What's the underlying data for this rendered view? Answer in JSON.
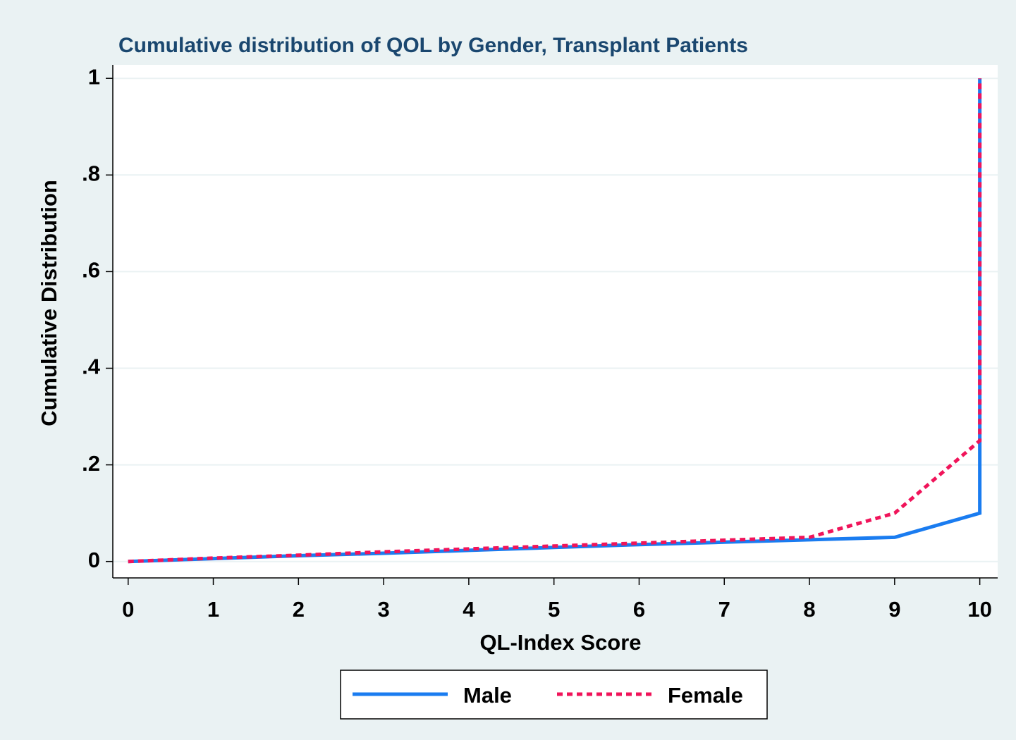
{
  "chart_data": {
    "type": "line",
    "title": "Cumulative distribution of QOL by Gender, Transplant Patients",
    "x_label": "QL-Index Score",
    "y_label": "Cumulative Distribution",
    "series": [
      {
        "name": "Male",
        "color": "#1a7cf0",
        "dash": "solid",
        "x": [
          0,
          1,
          2,
          3,
          4,
          5,
          6,
          7,
          8,
          9,
          10,
          10
        ],
        "values": [
          0,
          0.006,
          0.012,
          0.017,
          0.023,
          0.029,
          0.035,
          0.04,
          0.045,
          0.05,
          0.1,
          1
        ]
      },
      {
        "name": "Female",
        "color": "#f0145a",
        "dash": "dotted",
        "x": [
          0,
          1,
          2,
          3,
          4,
          5,
          6,
          7,
          8,
          9,
          10,
          10
        ],
        "values": [
          0,
          0.007,
          0.013,
          0.02,
          0.026,
          0.032,
          0.038,
          0.044,
          0.05,
          0.1,
          0.25,
          1
        ]
      }
    ],
    "xlim": [
      -0.18,
      10.21
    ],
    "ylim": [
      -0.034,
      1.028
    ],
    "xticks": [
      0,
      1,
      2,
      3,
      4,
      5,
      6,
      7,
      8,
      9,
      10
    ],
    "yticks": [
      0,
      {
        "value": 0.2,
        "label": ".2"
      },
      {
        "value": 0.4,
        "label": ".4"
      },
      {
        "value": 0.6,
        "label": ".6"
      },
      {
        "value": 0.8,
        "label": ".8"
      },
      1
    ],
    "grid": true,
    "legend_position": "bottom"
  }
}
